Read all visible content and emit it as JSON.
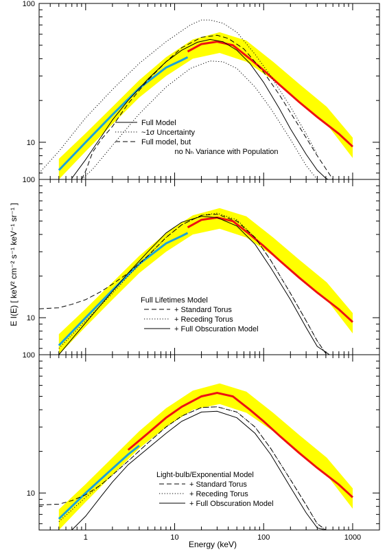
{
  "figure": {
    "xlabel": "Energy (keV)",
    "ylabel": "E I(E)  [ keV² cm⁻² s⁻¹ keV⁻¹ sr⁻¹ ]"
  },
  "colors": {
    "band": "#ffff00",
    "observed": "#1ba1d8",
    "model": "#ee1111",
    "lines": "#000000"
  },
  "chart_data": [
    {
      "type": "line",
      "scale": "log-log",
      "xlim": [
        0.3,
        2000
      ],
      "ylim": [
        5.4,
        100
      ],
      "x_ticks": [
        "1",
        "10",
        "100",
        "1000"
      ],
      "y_ticks": [
        "10",
        "100"
      ],
      "legend": [
        {
          "label": "Full Model",
          "style": "solid"
        },
        {
          "label": "~1σ Uncertainty",
          "style": "dotted"
        },
        {
          "label": "Full model, but",
          "style": "dashed"
        },
        {
          "label": "no Nₕ Variance with Population",
          "style": "none"
        }
      ],
      "band": {
        "name": "",
        "x": [
          0.5,
          1,
          2,
          4,
          8,
          16,
          32,
          64,
          128,
          256,
          512,
          1000
        ],
        "lower": [
          5.4,
          8.6,
          13.5,
          21,
          30,
          40,
          44,
          38,
          28,
          19.5,
          13.5,
          7.7
        ],
        "upper": [
          7.6,
          11.6,
          18,
          28,
          41,
          55,
          62,
          54,
          38,
          26,
          18,
          10.8
        ]
      },
      "series": [
        {
          "name": "",
          "role": "observed",
          "x": [
            0.5,
            1,
            2,
            4,
            8,
            12,
            14
          ],
          "y": [
            6.3,
            10,
            15.8,
            24.5,
            34.5,
            39,
            41
          ]
        },
        {
          "name": "",
          "role": "model",
          "x": [
            14,
            20,
            30,
            45,
            70,
            100,
            150,
            250,
            400,
            700,
            1000
          ],
          "y": [
            45,
            51,
            53,
            50,
            40,
            33,
            26,
            19.5,
            15.2,
            11.5,
            9.3
          ]
        },
        {
          "name": "",
          "role": "solid",
          "x": [
            0.7,
            1,
            1.5,
            2,
            3,
            5,
            8,
            12,
            18,
            25,
            35,
            50,
            70,
            100,
            150,
            200,
            300,
            400,
            500,
            600
          ],
          "y": [
            5.5,
            7.5,
            11,
            14.5,
            20,
            28.5,
            38,
            46,
            52.5,
            55,
            53,
            46,
            37,
            27,
            17.5,
            12.5,
            8.2,
            6.3,
            5.5,
            5.2
          ]
        },
        {
          "name": "",
          "role": "dotted",
          "x": [
            0.3,
            0.5,
            1,
            2,
            4,
            8,
            15,
            20,
            25,
            35,
            50,
            80,
            120,
            200,
            300,
            400
          ],
          "y": [
            6,
            8.6,
            15,
            24,
            37,
            53,
            70,
            76,
            76,
            72,
            62,
            43,
            30,
            18,
            11.5,
            8.2
          ]
        },
        {
          "name": "",
          "role": "dotted",
          "x": [
            0.9,
            1.2,
            2,
            4,
            8,
            15,
            25,
            35,
            50,
            80,
            120,
            200,
            300,
            400
          ],
          "y": [
            5.4,
            6.4,
            9.5,
            16,
            25,
            34,
            38.5,
            38,
            34,
            25,
            17.5,
            10.5,
            6.8,
            5.4
          ]
        },
        {
          "name": "",
          "role": "dashed",
          "x": [
            0.9,
            1,
            1.2,
            1.5,
            2,
            3,
            5,
            8,
            12,
            20,
            30,
            40,
            60,
            100,
            150,
            250,
            400,
            600
          ],
          "y": [
            5.4,
            6.2,
            8.5,
            10.5,
            13,
            19,
            28,
            38,
            48,
            57,
            59,
            56,
            47,
            32,
            22,
            13,
            8,
            5.4
          ]
        }
      ]
    },
    {
      "type": "line",
      "scale": "log-log",
      "xlim": [
        0.3,
        2000
      ],
      "ylim": [
        5.4,
        100
      ],
      "x_ticks": [
        "1",
        "10",
        "100",
        "1000"
      ],
      "y_ticks": [
        "10",
        "100"
      ],
      "legend": [
        {
          "label": "Full Lifetimes Model",
          "style": "none"
        },
        {
          "label": "+ Standard Torus",
          "style": "dashed"
        },
        {
          "label": "+ Receding Torus",
          "style": "dotted"
        },
        {
          "label": "+ Full Obscuration Model",
          "style": "solid"
        }
      ],
      "band": {
        "name": "",
        "x": [
          0.5,
          1,
          2,
          4,
          8,
          16,
          32,
          64,
          128,
          256,
          512,
          1000
        ],
        "lower": [
          5.4,
          8.6,
          13.5,
          21,
          30,
          40,
          44,
          38,
          28,
          19.5,
          13.5,
          7.7
        ],
        "upper": [
          7.6,
          11.6,
          18,
          28,
          41,
          55,
          62,
          54,
          38,
          26,
          18,
          10.8
        ]
      },
      "series": [
        {
          "name": "",
          "role": "observed",
          "x": [
            0.5,
            1,
            2,
            4,
            8,
            12,
            14
          ],
          "y": [
            6.3,
            10,
            15.8,
            24.5,
            34.5,
            39,
            41
          ]
        },
        {
          "name": "",
          "role": "model",
          "x": [
            14,
            20,
            30,
            45,
            70,
            100,
            150,
            250,
            400,
            700,
            1000
          ],
          "y": [
            45,
            51,
            53,
            50,
            40,
            33,
            26,
            19.5,
            15.2,
            11.5,
            9.3
          ]
        },
        {
          "name": "",
          "role": "dashed",
          "x": [
            0.3,
            0.5,
            0.7,
            1,
            1.5,
            2,
            3,
            5,
            8,
            12,
            20,
            30,
            50,
            80,
            120,
            200,
            300,
            400,
            500
          ],
          "y": [
            11.6,
            11.8,
            12.5,
            13.5,
            15.5,
            17.5,
            21,
            28,
            38,
            47,
            55,
            56,
            50,
            38,
            26,
            15,
            9.5,
            6.8,
            5.5
          ]
        },
        {
          "name": "",
          "role": "dotted",
          "x": [
            0.5,
            1,
            2,
            3,
            5,
            8,
            12,
            20,
            30,
            50,
            80,
            120,
            200,
            300,
            400,
            500
          ],
          "y": [
            6,
            9.5,
            15,
            20,
            28,
            38,
            47,
            55,
            57,
            51,
            38,
            26,
            15,
            9.5,
            6.8,
            5.5
          ]
        },
        {
          "name": "",
          "role": "solid",
          "x": [
            0.5,
            0.7,
            1,
            1.5,
            2,
            3,
            5,
            8,
            12,
            20,
            30,
            50,
            80,
            120,
            200,
            300,
            400,
            550
          ],
          "y": [
            5.4,
            7,
            9.2,
            12.5,
            15.5,
            21,
            30,
            41,
            49,
            54,
            53,
            46,
            34,
            23,
            13.5,
            8.5,
            6.2,
            5.4
          ]
        }
      ]
    },
    {
      "type": "line",
      "scale": "log-log",
      "xlim": [
        0.3,
        2000
      ],
      "ylim": [
        5.4,
        100
      ],
      "x_ticks": [
        "1",
        "10",
        "100",
        "1000"
      ],
      "y_ticks": [
        "10",
        "100"
      ],
      "legend": [
        {
          "label": "Light-bulb/Exponential Model",
          "style": "none"
        },
        {
          "label": "+ Standard Torus",
          "style": "dashed"
        },
        {
          "label": "+ Receding Torus",
          "style": "dotted"
        },
        {
          "label": "+ Full Obscuration Model",
          "style": "solid"
        }
      ],
      "band": {
        "name": "",
        "x": [
          0.5,
          1,
          2,
          4,
          8,
          16,
          32,
          64,
          128,
          256,
          512,
          1000
        ],
        "lower": [
          5.4,
          8.6,
          13.5,
          21,
          30,
          40,
          44,
          38,
          28,
          19.5,
          13.5,
          7.7
        ],
        "upper": [
          7.6,
          11.6,
          18,
          28,
          41,
          55,
          62,
          54,
          38,
          26,
          18,
          10.8
        ]
      },
      "series": [
        {
          "name": "",
          "role": "observed",
          "x": [
            0.5,
            1,
            2,
            3,
            4
          ],
          "y": [
            6.5,
            10,
            15,
            19,
            22
          ]
        },
        {
          "name": "",
          "role": "model",
          "x": [
            3,
            5,
            8,
            12,
            20,
            30,
            45,
            70,
            100,
            150,
            250,
            400,
            700,
            1000
          ],
          "y": [
            20.5,
            27,
            35,
            42,
            50,
            53,
            50,
            40,
            33,
            26,
            19.5,
            15.2,
            11.5,
            9.3
          ]
        },
        {
          "name": "",
          "role": "dashed",
          "x": [
            0.3,
            0.5,
            0.7,
            1,
            1.5,
            2,
            3,
            5,
            8,
            12,
            20,
            30,
            50,
            80,
            120,
            200,
            300,
            400,
            500
          ],
          "y": [
            8.2,
            8.3,
            8.8,
            9.7,
            11.5,
            13.5,
            17,
            23,
            30,
            36,
            41.5,
            42,
            38.5,
            30,
            21,
            12.5,
            8.2,
            6,
            5.4
          ]
        },
        {
          "name": "",
          "role": "dotted",
          "x": [
            0.5,
            1,
            2,
            3,
            5,
            8,
            12,
            20,
            30,
            50,
            80,
            120,
            200,
            300,
            400,
            500
          ],
          "y": [
            6.2,
            9.3,
            13.5,
            17,
            23,
            30,
            36,
            41.5,
            42,
            38.5,
            30,
            21,
            12.5,
            8.2,
            6,
            5.4
          ]
        },
        {
          "name": "",
          "role": "solid",
          "x": [
            0.7,
            1,
            1.5,
            2,
            3,
            5,
            8,
            12,
            20,
            30,
            50,
            80,
            120,
            200,
            300,
            400,
            500
          ],
          "y": [
            5.4,
            6.8,
            9.5,
            12,
            16,
            21,
            27,
            33,
            38.5,
            39,
            35,
            27,
            19,
            11,
            7.2,
            5.6,
            5.4
          ]
        }
      ]
    }
  ]
}
